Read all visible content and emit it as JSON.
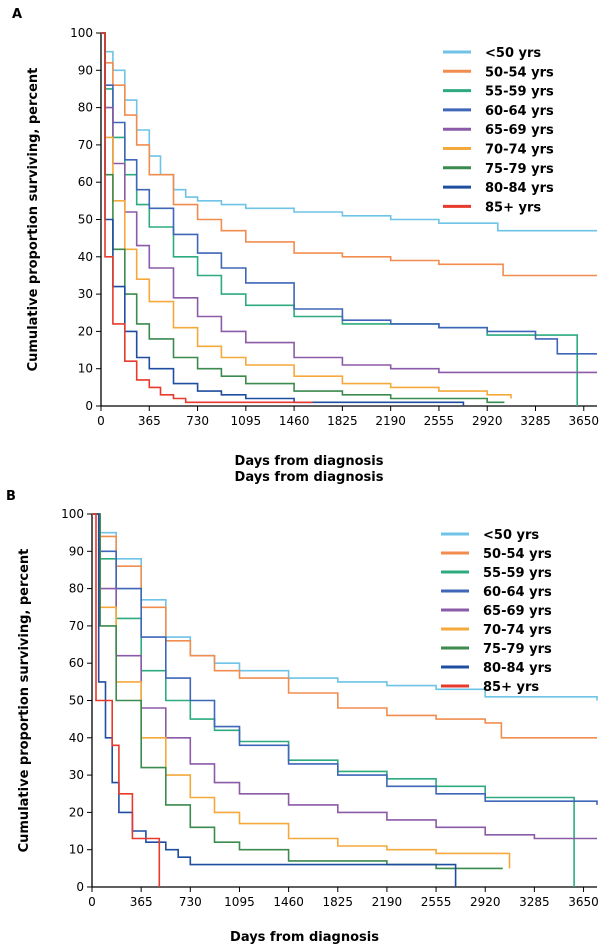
{
  "chart_data": [
    {
      "type": "line",
      "panel_label": "A",
      "ylabel": "Cumulative proportion surviving, percent",
      "xlabel": "Days from diagnosis",
      "xlabel_repeat": "Days from diagnosis",
      "xlim": [
        0,
        3750
      ],
      "ylim": [
        0,
        100
      ],
      "xticks": [
        "0",
        "365",
        "730",
        "1095",
        "1460",
        "1825",
        "2190",
        "2555",
        "2920",
        "3285",
        "3650"
      ],
      "yticks": [
        "0",
        "10",
        "20",
        "30",
        "40",
        "50",
        "60",
        "70",
        "80",
        "90",
        "100"
      ],
      "legend_position": "top-right",
      "grid": false,
      "series": [
        {
          "name": "<50 yrs",
          "color": "#6ec3e6",
          "x": [
            0,
            30,
            90,
            180,
            270,
            365,
            450,
            548,
            640,
            730,
            910,
            1095,
            1460,
            1825,
            2190,
            2555,
            2920,
            3000,
            3750
          ],
          "y": [
            100,
            95,
            90,
            82,
            74,
            67,
            62,
            58,
            56,
            55,
            54,
            53,
            52,
            51,
            50,
            49,
            49,
            47,
            47
          ]
        },
        {
          "name": "50-54 yrs",
          "color": "#f08d4e",
          "x": [
            0,
            30,
            90,
            180,
            270,
            365,
            548,
            730,
            910,
            1095,
            1460,
            1825,
            2190,
            2555,
            2920,
            3040,
            3750
          ],
          "y": [
            100,
            92,
            86,
            78,
            70,
            62,
            54,
            50,
            47,
            44,
            41,
            40,
            39,
            38,
            38,
            35,
            35
          ]
        },
        {
          "name": "55-59 yrs",
          "color": "#2dab7e",
          "x": [
            0,
            30,
            90,
            180,
            270,
            365,
            548,
            730,
            910,
            1095,
            1460,
            1825,
            2190,
            2555,
            2920,
            3285,
            3600,
            3600
          ],
          "y": [
            100,
            85,
            72,
            62,
            54,
            48,
            40,
            35,
            30,
            27,
            24,
            22,
            22,
            21,
            19,
            19,
            19,
            0
          ]
        },
        {
          "name": "60-64 yrs",
          "color": "#3f66b8",
          "x": [
            0,
            30,
            90,
            180,
            270,
            365,
            548,
            730,
            910,
            1095,
            1460,
            1825,
            2190,
            2555,
            2920,
            3285,
            3450,
            3750
          ],
          "y": [
            100,
            86,
            76,
            66,
            58,
            53,
            46,
            41,
            37,
            33,
            26,
            23,
            22,
            21,
            20,
            18,
            14,
            14
          ]
        },
        {
          "name": "65-69 yrs",
          "color": "#8b5aa8",
          "x": [
            0,
            30,
            90,
            180,
            270,
            365,
            548,
            730,
            910,
            1095,
            1460,
            1825,
            2190,
            2555,
            2920,
            3750
          ],
          "y": [
            100,
            80,
            65,
            52,
            43,
            37,
            29,
            24,
            20,
            17,
            13,
            11,
            10,
            9,
            9,
            9
          ]
        },
        {
          "name": "70-74 yrs",
          "color": "#f5a93c",
          "x": [
            0,
            30,
            90,
            180,
            270,
            365,
            548,
            730,
            910,
            1095,
            1460,
            1825,
            2190,
            2555,
            2920,
            3100
          ],
          "y": [
            100,
            72,
            55,
            42,
            34,
            28,
            21,
            16,
            13,
            11,
            8,
            6,
            5,
            4,
            3,
            2
          ]
        },
        {
          "name": "75-79 yrs",
          "color": "#3b8a4e",
          "x": [
            0,
            30,
            90,
            180,
            270,
            365,
            548,
            730,
            910,
            1095,
            1460,
            1825,
            2190,
            2555,
            2920,
            3050
          ],
          "y": [
            100,
            62,
            42,
            30,
            22,
            18,
            13,
            10,
            8,
            6,
            4,
            3,
            2,
            2,
            1,
            1
          ]
        },
        {
          "name": "80-84 yrs",
          "color": "#1f4da0",
          "x": [
            0,
            30,
            90,
            180,
            270,
            365,
            548,
            730,
            910,
            1095,
            1460,
            1825,
            2190,
            2555,
            2740
          ],
          "y": [
            100,
            50,
            32,
            20,
            13,
            10,
            6,
            4,
            3,
            2,
            1,
            1,
            1,
            1,
            0
          ]
        },
        {
          "name": "85+ yrs",
          "color": "#e83a2c",
          "x": [
            0,
            30,
            90,
            180,
            270,
            365,
            450,
            548,
            640,
            730,
            1095,
            1460,
            1600
          ],
          "y": [
            100,
            40,
            22,
            12,
            7,
            5,
            3,
            2,
            1,
            1,
            1,
            1,
            1
          ]
        }
      ]
    },
    {
      "type": "line",
      "panel_label": "B",
      "ylabel": "Cumulative proportion surviving, percent",
      "xlabel": "Days from diagnosis",
      "xlim": [
        0,
        3750
      ],
      "ylim": [
        0,
        100
      ],
      "xticks": [
        "0",
        "365",
        "730",
        "1095",
        "1460",
        "1825",
        "2190",
        "2555",
        "2920",
        "3285",
        "3650"
      ],
      "yticks": [
        "0",
        "10",
        "20",
        "30",
        "40",
        "50",
        "60",
        "70",
        "80",
        "90",
        "100"
      ],
      "legend_position": "top-right",
      "grid": false,
      "series": [
        {
          "name": "<50 yrs",
          "color": "#6ec3e6",
          "x": [
            0,
            60,
            180,
            365,
            548,
            730,
            910,
            1095,
            1460,
            1825,
            2190,
            2555,
            2920,
            3285,
            3750
          ],
          "y": [
            100,
            95,
            88,
            77,
            67,
            62,
            60,
            58,
            56,
            55,
            54,
            53,
            51,
            51,
            50
          ]
        },
        {
          "name": "50-54 yrs",
          "color": "#f08d4e",
          "x": [
            0,
            60,
            180,
            365,
            548,
            730,
            910,
            1095,
            1460,
            1825,
            2190,
            2555,
            2920,
            3040,
            3750
          ],
          "y": [
            100,
            94,
            86,
            75,
            66,
            62,
            58,
            56,
            52,
            48,
            46,
            45,
            44,
            40,
            40
          ]
        },
        {
          "name": "55-59 yrs",
          "color": "#2dab7e",
          "x": [
            0,
            60,
            180,
            365,
            548,
            730,
            910,
            1095,
            1460,
            1825,
            2190,
            2555,
            2920,
            3285,
            3580,
            3580
          ],
          "y": [
            100,
            88,
            72,
            58,
            50,
            45,
            42,
            39,
            34,
            31,
            29,
            27,
            24,
            24,
            24,
            0
          ]
        },
        {
          "name": "60-64 yrs",
          "color": "#3f66b8",
          "x": [
            0,
            60,
            180,
            365,
            548,
            730,
            910,
            1095,
            1460,
            1825,
            2190,
            2555,
            2920,
            3285,
            3750
          ],
          "y": [
            100,
            90,
            80,
            67,
            56,
            50,
            43,
            38,
            33,
            30,
            27,
            25,
            23,
            23,
            22
          ]
        },
        {
          "name": "65-69 yrs",
          "color": "#8b5aa8",
          "x": [
            0,
            60,
            180,
            365,
            548,
            730,
            910,
            1095,
            1460,
            1825,
            2190,
            2555,
            2920,
            3285,
            3750
          ],
          "y": [
            100,
            80,
            62,
            48,
            40,
            33,
            28,
            25,
            22,
            20,
            18,
            16,
            14,
            13,
            13
          ]
        },
        {
          "name": "70-74 yrs",
          "color": "#f5a93c",
          "x": [
            0,
            60,
            180,
            365,
            548,
            730,
            910,
            1095,
            1460,
            1825,
            2190,
            2555,
            2760,
            3100
          ],
          "y": [
            100,
            75,
            55,
            40,
            30,
            24,
            20,
            17,
            13,
            11,
            10,
            9,
            9,
            5
          ]
        },
        {
          "name": "75-79 yrs",
          "color": "#3b8a4e",
          "x": [
            0,
            60,
            180,
            365,
            548,
            730,
            910,
            1095,
            1460,
            1825,
            2190,
            2555,
            2920,
            3050
          ],
          "y": [
            100,
            70,
            50,
            32,
            22,
            16,
            12,
            10,
            7,
            7,
            6,
            5,
            5,
            5
          ]
        },
        {
          "name": "80-84 yrs",
          "color": "#1f4da0",
          "x": [
            0,
            50,
            100,
            150,
            200,
            300,
            400,
            548,
            640,
            730,
            1095,
            1460,
            1825,
            2190,
            2555,
            2700,
            2700
          ],
          "y": [
            100,
            55,
            40,
            28,
            20,
            15,
            12,
            10,
            8,
            6,
            6,
            6,
            6,
            6,
            6,
            6,
            0
          ]
        },
        {
          "name": "85+ yrs",
          "color": "#e83a2c",
          "x": [
            0,
            30,
            100,
            150,
            200,
            250,
            300,
            400,
            500,
            500
          ],
          "y": [
            100,
            50,
            50,
            38,
            25,
            25,
            13,
            13,
            13,
            0
          ]
        }
      ]
    }
  ]
}
